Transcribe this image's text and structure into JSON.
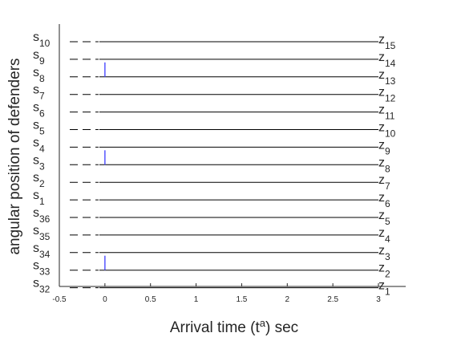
{
  "chart_data": {
    "type": "line",
    "xlabel": "Arrival time (t",
    "xlabel_sup": "a",
    "xlabel_suffix": ") sec",
    "ylabel": "angular position of defenders",
    "xlim": [
      -0.5,
      3.0
    ],
    "x_ticks": [
      {
        "value": -0.5,
        "label": "-0.5"
      },
      {
        "value": 0,
        "label": "0"
      },
      {
        "value": 0.5,
        "label": "0.5"
      },
      {
        "value": 1,
        "label": "1"
      },
      {
        "value": 1.5,
        "label": "1.5"
      },
      {
        "value": 2,
        "label": "2"
      },
      {
        "value": 2.5,
        "label": "2.5"
      },
      {
        "value": 3,
        "label": "3"
      }
    ],
    "dashed_segment": {
      "x_start": -0.5,
      "x_end": 0.0
    },
    "solid_segment": {
      "x_start": 0.0,
      "x_end": 3.0
    },
    "line_color": "#000000",
    "marker_color": "#5555ff",
    "rows": [
      {
        "left": "s",
        "left_sub": "10",
        "right": "z",
        "right_sub": "15",
        "marker": false
      },
      {
        "left": "s",
        "left_sub": "9",
        "right": "z",
        "right_sub": "14",
        "marker": false
      },
      {
        "left": "s",
        "left_sub": "8",
        "right": "z",
        "right_sub": "13",
        "marker": true
      },
      {
        "left": "s",
        "left_sub": "7",
        "right": "z",
        "right_sub": "12",
        "marker": false
      },
      {
        "left": "s",
        "left_sub": "6",
        "right": "z",
        "right_sub": "11",
        "marker": false
      },
      {
        "left": "s",
        "left_sub": "5",
        "right": "z",
        "right_sub": "10",
        "marker": false
      },
      {
        "left": "s",
        "left_sub": "4",
        "right": "z",
        "right_sub": "9",
        "marker": false
      },
      {
        "left": "s",
        "left_sub": "3",
        "right": "z",
        "right_sub": "8",
        "marker": true
      },
      {
        "left": "s",
        "left_sub": "2",
        "right": "z",
        "right_sub": "7",
        "marker": false
      },
      {
        "left": "s",
        "left_sub": "1",
        "right": "z",
        "right_sub": "6",
        "marker": false
      },
      {
        "left": "s",
        "left_sub": "36",
        "right": "z",
        "right_sub": "5",
        "marker": false
      },
      {
        "left": "s",
        "left_sub": "35",
        "right": "z",
        "right_sub": "4",
        "marker": false
      },
      {
        "left": "s",
        "left_sub": "34",
        "right": "z",
        "right_sub": "3",
        "marker": false
      },
      {
        "left": "s",
        "left_sub": "33",
        "right": "z",
        "right_sub": "2",
        "marker": true
      },
      {
        "left": "s",
        "left_sub": "32",
        "right": "z",
        "right_sub": "1",
        "marker": false
      }
    ]
  }
}
